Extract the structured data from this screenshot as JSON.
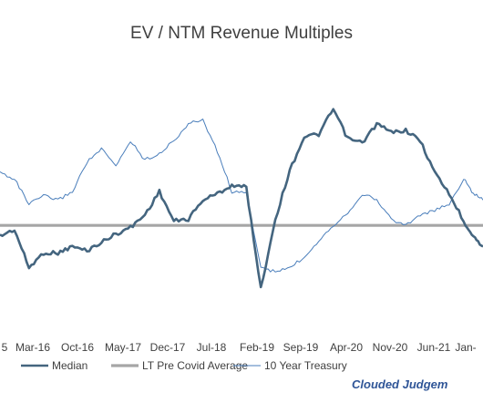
{
  "chart_data": {
    "type": "line",
    "title": "EV / NTM Revenue Multiples",
    "xlabel": "",
    "ylabel": "",
    "x_tick_labels": [
      "5",
      "Mar-16",
      "Oct-16",
      "May-17",
      "Dec-17",
      "Jul-18",
      "Feb-19",
      "Sep-19",
      "Apr-20",
      "Nov-20",
      "Jun-21",
      "Jan-"
    ],
    "x_range": [
      0,
      100
    ],
    "y_range": [
      0,
      100
    ],
    "x": [
      0,
      3,
      6,
      9,
      12,
      15,
      18,
      21,
      24,
      27,
      30,
      33,
      36,
      39,
      42,
      45,
      48,
      51,
      54,
      57,
      60,
      63,
      66,
      69,
      72,
      75,
      78,
      81,
      84,
      87,
      90,
      93,
      96,
      98,
      100
    ],
    "series": [
      {
        "name": "Median",
        "color": "#44657f",
        "style": "thick",
        "values": [
          35,
          38,
          20,
          27,
          27,
          30,
          28,
          32,
          36,
          39,
          45,
          56,
          42,
          43,
          52,
          55,
          59,
          58,
          10,
          43,
          66,
          82,
          83,
          95,
          81,
          79,
          88,
          84,
          85,
          80,
          65,
          55,
          42,
          35,
          30
        ]
      },
      {
        "name": "LT Pre Covid Average",
        "color": "#a6a6a6",
        "style": "flat",
        "values": [
          40,
          40,
          40,
          40,
          40,
          40,
          40,
          40,
          40,
          40,
          40,
          40,
          40,
          40,
          40,
          40,
          40,
          40,
          40,
          40,
          40,
          40,
          40,
          40,
          40,
          40,
          40,
          40,
          40,
          40,
          40,
          40,
          40,
          40,
          40
        ]
      },
      {
        "name": "10 Year Treasury",
        "color": "#4a7ebb",
        "style": "thin",
        "values": [
          65,
          62,
          50,
          54,
          52,
          56,
          70,
          76,
          68,
          80,
          71,
          74,
          80,
          88,
          90,
          75,
          56,
          55,
          20,
          18,
          20,
          25,
          33,
          40,
          46,
          55,
          52,
          43,
          40,
          45,
          47,
          50,
          62,
          55,
          52
        ]
      }
    ],
    "legend": {
      "position": "bottom",
      "items": [
        "Median",
        "LT Pre Covid Average",
        "10 Year Treasury"
      ]
    },
    "grid": false,
    "watermark": "Clouded Judgem"
  }
}
